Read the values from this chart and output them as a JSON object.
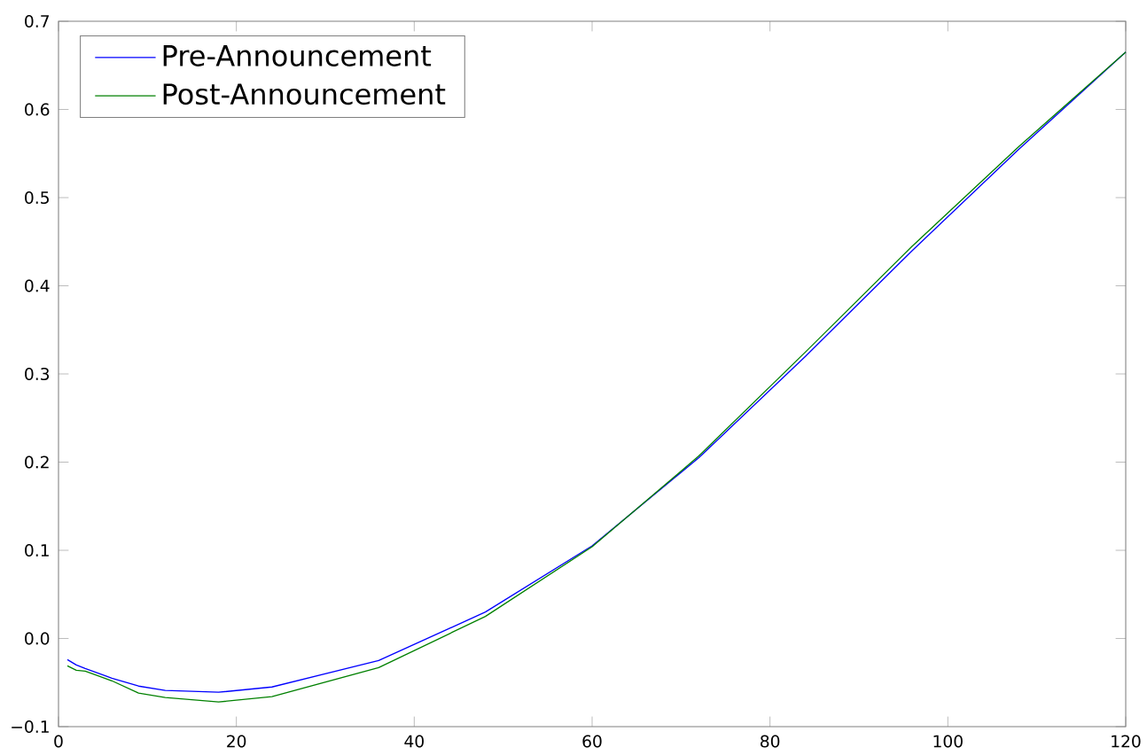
{
  "chart_data": {
    "type": "line",
    "legend": "top left",
    "grid": false,
    "xlim": [
      0,
      120
    ],
    "ylim": [
      -0.1,
      0.7
    ],
    "xticks": [
      0,
      20,
      40,
      60,
      80,
      100,
      120
    ],
    "yticks": [
      {
        "value": -0.1,
        "label": "−0.1"
      },
      {
        "value": 0,
        "label": "0.0"
      },
      0.1,
      0.2,
      0.3,
      0.4,
      0.5,
      0.6,
      0.7
    ],
    "series": [
      {
        "name": "Pre-Announcement",
        "color": "#0000ff",
        "x": [
          1,
          2,
          3,
          6,
          9,
          12,
          18,
          24,
          36,
          48,
          60,
          72,
          84,
          96,
          108,
          120
        ],
        "values": [
          -0.024,
          -0.03,
          -0.034,
          -0.045,
          -0.054,
          -0.059,
          -0.061,
          -0.055,
          -0.025,
          0.03,
          0.105,
          0.205,
          0.32,
          0.44,
          0.555,
          0.665
        ]
      },
      {
        "name": "Post-Announcement",
        "color": "#008000",
        "x": [
          1,
          2,
          3,
          6,
          9,
          12,
          18,
          24,
          36,
          48,
          60,
          72,
          84,
          96,
          108,
          120
        ],
        "values": [
          -0.031,
          -0.036,
          -0.037,
          -0.048,
          -0.062,
          -0.067,
          -0.072,
          -0.066,
          -0.033,
          0.025,
          0.104,
          0.207,
          0.325,
          0.445,
          0.558,
          0.665
        ]
      }
    ]
  }
}
